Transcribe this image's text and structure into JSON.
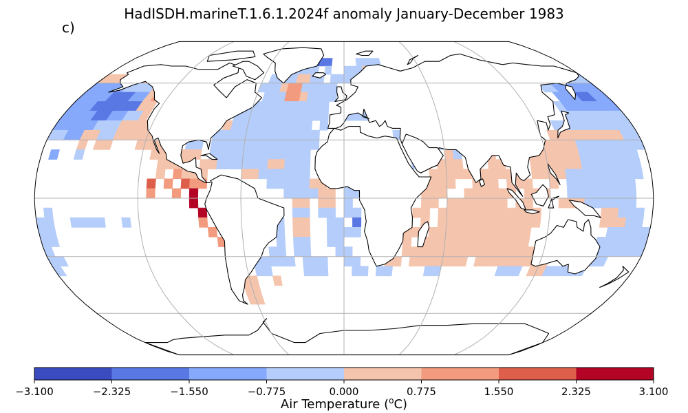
{
  "map": {
    "title": "HadISDH.marineT.1.6.1.2024f anomaly January-December 1983",
    "panel_label": "c)",
    "projection": "Robinson",
    "gridlines": true,
    "colormap": "coolwarm",
    "colors": [
      "#3b4cc0",
      "#5a78e4",
      "#86a9fc",
      "#b4cdfa",
      "#f5c4ad",
      "#f39b7e",
      "#dc5e4b",
      "#b40426"
    ],
    "land_color": "#ffffff",
    "coast_color": "#000000",
    "grid_color": "#b0b0b0"
  },
  "colorbar": {
    "label": "Air Temperature (°C)",
    "label_text": "Air Temperature (",
    "label_sup": "o",
    "label_unit": "C)",
    "bounds": [
      -3.1,
      -2.325,
      -1.55,
      -0.775,
      0.0,
      0.775,
      1.55,
      2.325,
      3.1
    ],
    "tick_labels": [
      "−3.100",
      "−2.325",
      "−1.550",
      "−0.775",
      "0.000",
      "0.775",
      "1.550",
      "2.325",
      "3.100"
    ]
  }
}
